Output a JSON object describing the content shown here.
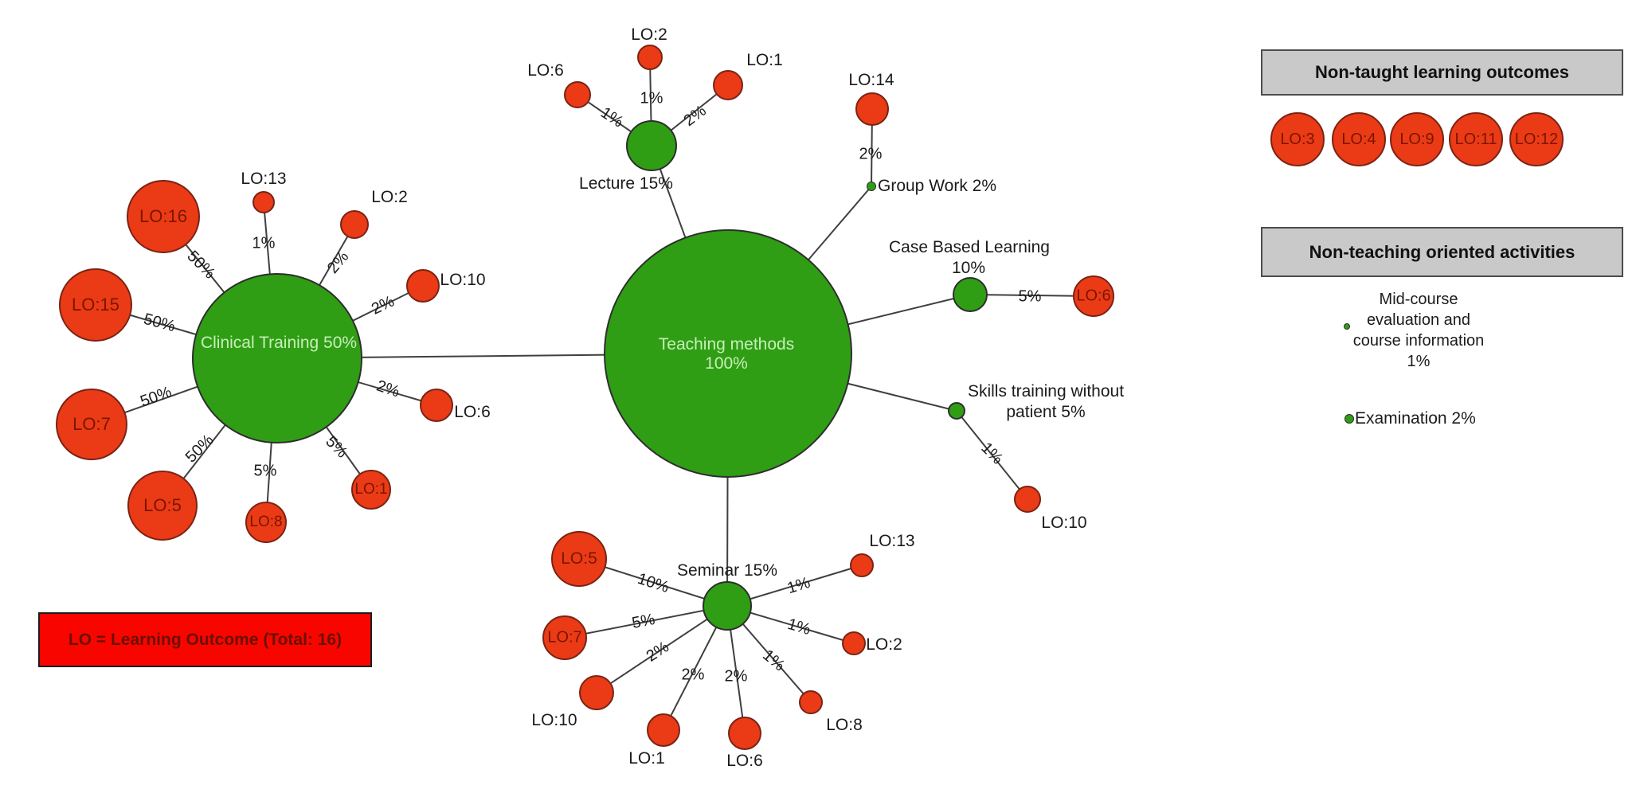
{
  "key_box": {
    "text": "LO = Learning Outcome (Total: 16)"
  },
  "center_node": {
    "line1": "Teaching methods",
    "line2": "100%"
  },
  "methods": {
    "clinical": {
      "label": "Clinical Training 50%"
    },
    "lecture": {
      "label": "Lecture 15%"
    },
    "groupwork": {
      "label": "Group Work 2%"
    },
    "cbl": {
      "label1": "Case Based Learning",
      "label2": "10%"
    },
    "skills": {
      "label1": "Skills training without",
      "label2": "patient 5%"
    },
    "seminar": {
      "label": "Seminar 15%"
    }
  },
  "links": {
    "lecture": [
      {
        "lo": "LO:6",
        "pct": "1%"
      },
      {
        "lo": "LO:2",
        "pct": "1%"
      },
      {
        "lo": "LO:1",
        "pct": "2%"
      }
    ],
    "groupwork": [
      {
        "lo": "LO:14",
        "pct": "2%"
      }
    ],
    "cbl": [
      {
        "lo": "LO:6",
        "pct": "5%"
      }
    ],
    "skills": [
      {
        "lo": "LO:10",
        "pct": "1%"
      }
    ],
    "clinical": [
      {
        "lo": "LO:16",
        "pct": "50%"
      },
      {
        "lo": "LO:13",
        "pct": "1%"
      },
      {
        "lo": "LO:2",
        "pct": "2%"
      },
      {
        "lo": "LO:15",
        "pct": "50%"
      },
      {
        "lo": "LO:10",
        "pct": "2%"
      },
      {
        "lo": "LO:6",
        "pct": "2%"
      },
      {
        "lo": "LO:7",
        "pct": "50%"
      },
      {
        "lo": "LO:5",
        "pct": "50%"
      },
      {
        "lo": "LO:8",
        "pct": "5%"
      },
      {
        "lo": "LO:1",
        "pct": "5%"
      }
    ],
    "seminar": [
      {
        "lo": "LO:5",
        "pct": "10%"
      },
      {
        "lo": "LO:7",
        "pct": "5%"
      },
      {
        "lo": "LO:10",
        "pct": "2%"
      },
      {
        "lo": "LO:1",
        "pct": "2%"
      },
      {
        "lo": "LO:6",
        "pct": "2%"
      },
      {
        "lo": "LO:8",
        "pct": "1%"
      },
      {
        "lo": "LO:2",
        "pct": "1%"
      },
      {
        "lo": "LO:13",
        "pct": "1%"
      }
    ]
  },
  "legend_non_taught": {
    "title": "Non-taught learning outcomes",
    "items": [
      "LO:3",
      "LO:4",
      "LO:9",
      "LO:11",
      "LO:12"
    ]
  },
  "legend_non_teaching": {
    "title": "Non-teaching oriented activities",
    "item1": {
      "lines": [
        "Mid-course",
        "evaluation and",
        "course information",
        "1%"
      ]
    },
    "item2": {
      "label": "Examination 2%"
    }
  },
  "colors": {
    "method_green": "#2f9e14",
    "outcome_red": "#ea3b16",
    "key_red": "#f90500",
    "legend_gray": "#c9c9c9",
    "pale_green_text": "#c7efb9",
    "lo_text": "#7c1500"
  }
}
